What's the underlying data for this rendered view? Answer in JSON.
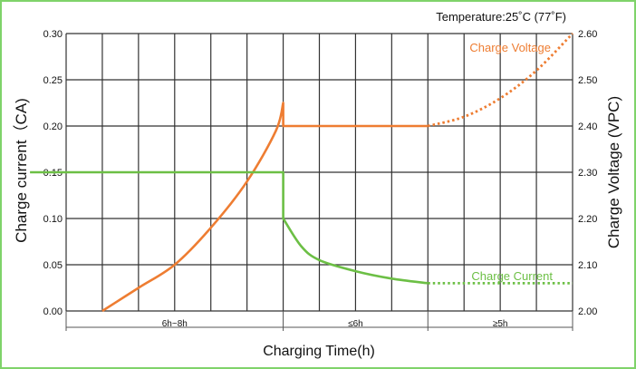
{
  "chart_data": {
    "type": "line",
    "temperature_note": "Temperature:25˚C (77˚F)",
    "xlabel": "Charging Time(h)",
    "ylabel_left": "Charge  current（CA)",
    "ylabel_right": "Charge Voltage (VPC)",
    "x_range": [
      0,
      14
    ],
    "x_ticks": [
      0,
      1,
      2,
      3,
      4,
      5,
      6,
      7,
      8,
      9,
      10,
      11,
      12,
      13,
      14
    ],
    "left_axis": {
      "ylim": [
        0,
        0.3
      ],
      "ticks": [
        "0.00",
        "0.05",
        "0.10",
        "0.15",
        "0.20",
        "0.25",
        "0.30"
      ],
      "tick_values": [
        0,
        0.05,
        0.1,
        0.15,
        0.2,
        0.25,
        0.3
      ]
    },
    "right_axis": {
      "ylim": [
        2.0,
        2.6
      ],
      "ticks": [
        "2.00",
        "2.10",
        "2.20",
        "2.30",
        "2.40",
        "2.50",
        "2.60"
      ],
      "tick_values": [
        2.0,
        2.1,
        2.2,
        2.3,
        2.4,
        2.5,
        2.6
      ]
    },
    "stages": [
      {
        "label": "6h~8h",
        "from": 0,
        "to": 6
      },
      {
        "label": "≤6h",
        "from": 6,
        "to": 10
      },
      {
        "label": "≥5h",
        "from": 10,
        "to": 14
      }
    ],
    "grid": true,
    "series": [
      {
        "name": "Charge Voltage",
        "axis": "right",
        "color": "#ee7d32",
        "segments": [
          {
            "style": "solid",
            "points": [
              [
                1,
                2.0
              ],
              [
                2,
                2.05
              ],
              [
                3,
                2.1
              ],
              [
                4,
                2.18
              ],
              [
                5,
                2.28
              ],
              [
                5.8,
                2.39
              ],
              [
                6,
                2.45
              ],
              [
                6,
                2.4
              ],
              [
                8,
                2.4
              ],
              [
                10,
                2.4
              ]
            ]
          },
          {
            "style": "dotted",
            "points": [
              [
                10,
                2.4
              ],
              [
                11,
                2.42
              ],
              [
                12,
                2.46
              ],
              [
                13,
                2.52
              ],
              [
                14,
                2.6
              ]
            ]
          }
        ]
      },
      {
        "name": "Charge Current",
        "axis": "left",
        "color": "#6cbf45",
        "segments": [
          {
            "style": "solid",
            "points": [
              [
                -1,
                0.15
              ],
              [
                6,
                0.15
              ],
              [
                6,
                0.1
              ],
              [
                6.5,
                0.07
              ],
              [
                7,
                0.055
              ],
              [
                8,
                0.043
              ],
              [
                9,
                0.035
              ],
              [
                10,
                0.03
              ]
            ]
          },
          {
            "style": "dotted",
            "points": [
              [
                10,
                0.03
              ],
              [
                14,
                0.03
              ]
            ]
          }
        ]
      }
    ],
    "series_labels": [
      {
        "text": "Charge Voltage",
        "color": "#ee7d32"
      },
      {
        "text": "Charge Current",
        "color": "#6cbf45"
      }
    ]
  }
}
